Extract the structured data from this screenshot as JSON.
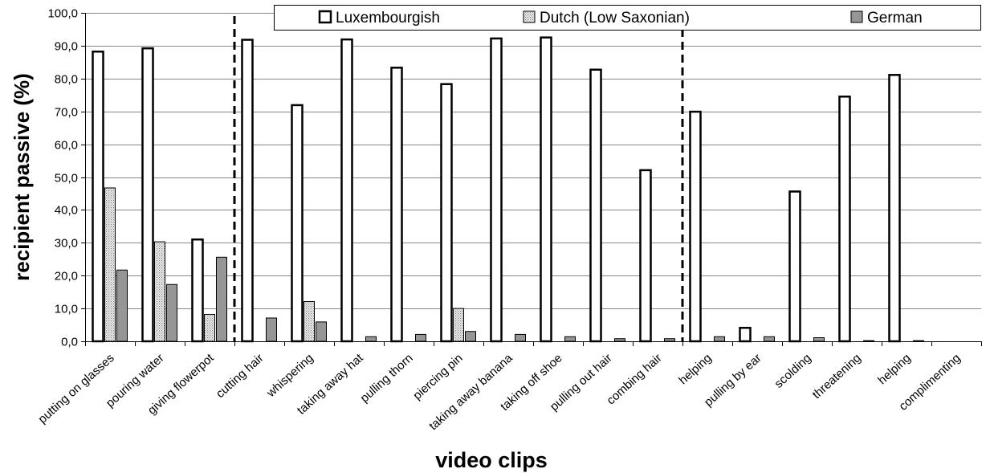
{
  "chart_data": {
    "type": "bar",
    "title": "",
    "xlabel": "video clips",
    "ylabel": "recipient passive (%)",
    "ylim": [
      0,
      100
    ],
    "ytick_step": 10,
    "grid": true,
    "legend_position": "top-right",
    "categories": [
      "putting on glasses",
      "pouring water",
      "giving flowerpot",
      "cutting hair",
      "whispering",
      "taking away hat",
      "pulling thorn",
      "piercing pin",
      "taking away banana",
      "taking off shoe",
      "pulling out hair",
      "combing hair",
      "helping",
      "pulling by ear",
      "scolding",
      "threatening",
      "helping",
      "complimenting"
    ],
    "series": [
      {
        "name": "Luxembourgish",
        "color": "#ffffff",
        "pattern": "outline",
        "values": [
          88.2,
          89.2,
          31.0,
          91.8,
          71.9,
          91.9,
          83.3,
          78.3,
          92.2,
          92.5,
          82.7,
          52.1,
          69.9,
          4.1,
          45.6,
          74.5,
          81.1,
          0
        ]
      },
      {
        "name": "Dutch (Low Saxonian)",
        "color": "#d0d0d0",
        "pattern": "dotted",
        "values": [
          46.7,
          30.3,
          8.2,
          0,
          12.1,
          0,
          0,
          10.0,
          0,
          0,
          0,
          0,
          0,
          0,
          0,
          0,
          0,
          0
        ]
      },
      {
        "name": "German",
        "color": "#969696",
        "pattern": "solid",
        "values": [
          21.7,
          17.3,
          25.6,
          7.1,
          5.9,
          1.4,
          2.1,
          3.0,
          2.1,
          1.4,
          0.8,
          0.8,
          1.4,
          1.4,
          1.1,
          0.2,
          0.2,
          0
        ]
      }
    ],
    "dividers_after_category_index": [
      2,
      11
    ]
  }
}
